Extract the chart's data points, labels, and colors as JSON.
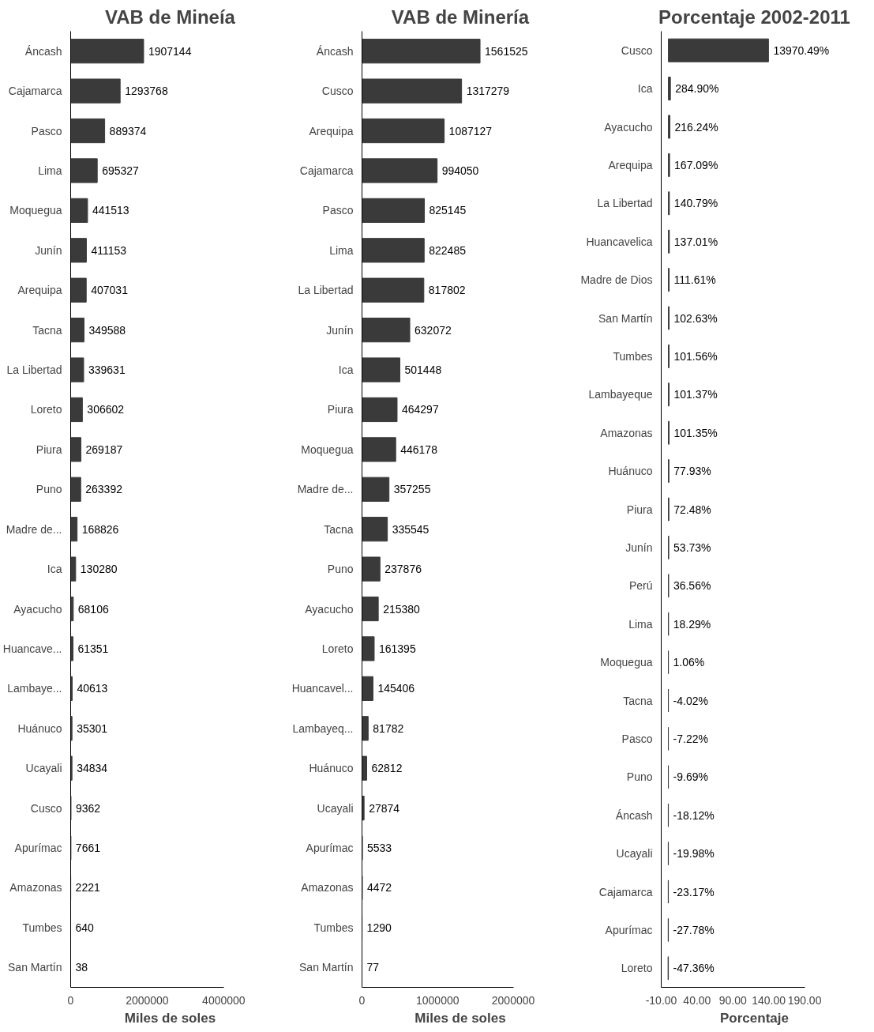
{
  "chart_data": [
    {
      "type": "bar",
      "orientation": "horizontal",
      "title": "VAB de Mineía",
      "xlabel": "Miles de soles",
      "color": "#3a3a3a",
      "grid": false,
      "data_labels": true,
      "categories": [
        "Áncash",
        "Cajamarca",
        "Pasco",
        "Lima",
        "Moquegua",
        "Junín",
        "Arequipa",
        "Tacna",
        "La Libertad",
        "Loreto",
        "Piura",
        "Puno",
        "Madre de...",
        "Ica",
        "Ayacucho",
        "Huancave...",
        "Lambaye...",
        "Huánuco",
        "Ucayali",
        "Cusco",
        "Apurímac",
        "Amazonas",
        "Tumbes",
        "San Martín"
      ],
      "values": [
        1907144,
        1293768,
        889374,
        695327,
        441513,
        411153,
        407031,
        349588,
        339631,
        306602,
        269187,
        263392,
        168826,
        130280,
        68106,
        61351,
        40613,
        35301,
        34834,
        9362,
        7661,
        2221,
        640,
        38
      ],
      "xlim": [
        0,
        4000000
      ],
      "xticks": [
        0,
        2000000,
        4000000
      ]
    },
    {
      "type": "bar",
      "orientation": "horizontal",
      "title": "VAB de Minería",
      "xlabel": "Miles de soles",
      "color": "#3a3a3a",
      "grid": false,
      "data_labels": true,
      "categories": [
        "Áncash",
        "Cusco",
        "Arequipa",
        "Cajamarca",
        "Pasco",
        "Lima",
        "La Libertad",
        "Junín",
        "Ica",
        "Piura",
        "Moquegua",
        "Madre de...",
        "Tacna",
        "Puno",
        "Ayacucho",
        "Loreto",
        "Huancavel...",
        "Lambayeq...",
        "Huánuco",
        "Ucayali",
        "Apurímac",
        "Amazonas",
        "Tumbes",
        "San Martín"
      ],
      "values": [
        1561525,
        1317279,
        1087127,
        994050,
        825145,
        822485,
        817802,
        632072,
        501448,
        464297,
        446178,
        357255,
        335545,
        237876,
        215380,
        161395,
        145406,
        81782,
        62812,
        27874,
        5533,
        4472,
        1290,
        77
      ],
      "xlim": [
        0,
        2000000
      ],
      "xticks": [
        0,
        1000000,
        2000000
      ]
    },
    {
      "type": "bar",
      "orientation": "horizontal",
      "title": "Porcentaje 2002-2011",
      "xlabel": "Porcentaje",
      "color": "#3a3a3a",
      "grid": false,
      "categories": [
        "Cusco",
        "Ica",
        "Ayacucho",
        "Arequipa",
        "La Libertad",
        "Huancavelica",
        "Madre de Dios",
        "San Martín",
        "Tumbes",
        "Lambayeque",
        "Amazonas",
        "Huánuco",
        "Piura",
        "Junín",
        "Perú",
        "Lima",
        "Moquegua",
        "Tacna",
        "Pasco",
        "Puno",
        "Áncash",
        "Ucayali",
        "Cajamarca",
        "Apurímac",
        "Loreto"
      ],
      "values": [
        139.7049,
        2.849,
        2.1624,
        1.6709,
        1.4079,
        1.3701,
        1.1161,
        1.0263,
        1.0156,
        1.0137,
        1.0135,
        0.7793,
        0.7248,
        0.5373,
        0.3656,
        0.1829,
        0.0106,
        -0.0402,
        -0.0722,
        -0.0969,
        -0.1812,
        -0.1998,
        -0.2317,
        -0.2778,
        -0.4736
      ],
      "value_labels": [
        "13970.49%",
        "284.90%",
        "216.24%",
        "167.09%",
        "140.79%",
        "137.01%",
        "111.61%",
        "102.63%",
        "101.56%",
        "101.37%",
        "101.35%",
        "77.93%",
        "72.48%",
        "53.73%",
        "36.56%",
        "18.29%",
        "1.06%",
        "-4.02%",
        "-7.22%",
        "-9.69%",
        "-18.12%",
        "-19.98%",
        "-23.17%",
        "-27.78%",
        "-47.36%"
      ],
      "xlim": [
        -10,
        190
      ],
      "xticks": [
        {
          "value": -10,
          "label": "-10.00"
        },
        {
          "value": 40,
          "label": "40.00"
        },
        {
          "value": 90,
          "label": "90.00"
        },
        {
          "value": 140,
          "label": "140.00"
        },
        {
          "value": 190,
          "label": "190.00"
        }
      ]
    }
  ]
}
